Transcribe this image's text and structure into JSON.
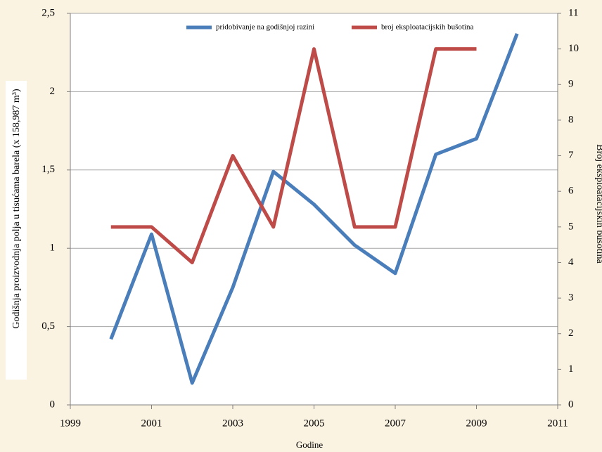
{
  "chart_data": {
    "type": "line",
    "x": [
      2000,
      2001,
      2002,
      2003,
      2004,
      2005,
      2006,
      2007,
      2008,
      2009,
      2010
    ],
    "xlim": [
      1999,
      2011
    ],
    "xticks": [
      1999,
      2001,
      2003,
      2005,
      2007,
      2009,
      2011
    ],
    "ylim": [
      0,
      2.5
    ],
    "yticks": [
      0,
      {
        "value": 0.5,
        "label": "0,5"
      },
      1,
      {
        "value": 1.5,
        "label": "1,5"
      },
      2,
      {
        "value": 2.5,
        "label": "2,5"
      }
    ],
    "y2lim": [
      0,
      11
    ],
    "y2ticks": [
      0,
      1,
      2,
      3,
      4,
      5,
      6,
      7,
      8,
      9,
      10,
      11
    ],
    "xlabel": "Godine",
    "ylabel": "Godišnja proizvodnja polja u tisućama barela (x 158,987 m³)",
    "y2label": "Broj eksploatacijskih bušotina",
    "grid": true,
    "legend": "top",
    "series": [
      {
        "name": "pridobivanje na godišnjoj razini",
        "color": "#4a7ebb",
        "values": [
          0.42,
          1.09,
          0.14,
          0.75,
          1.49,
          1.28,
          1.02,
          0.84,
          1.6,
          1.7,
          2.37
        ]
      },
      {
        "name": "broj eksploatacijskih bušotina",
        "color": "#be4b48",
        "axis": "y2",
        "values": [
          5,
          5,
          4,
          7,
          5,
          10,
          5,
          5,
          10,
          10,
          null
        ]
      }
    ]
  }
}
